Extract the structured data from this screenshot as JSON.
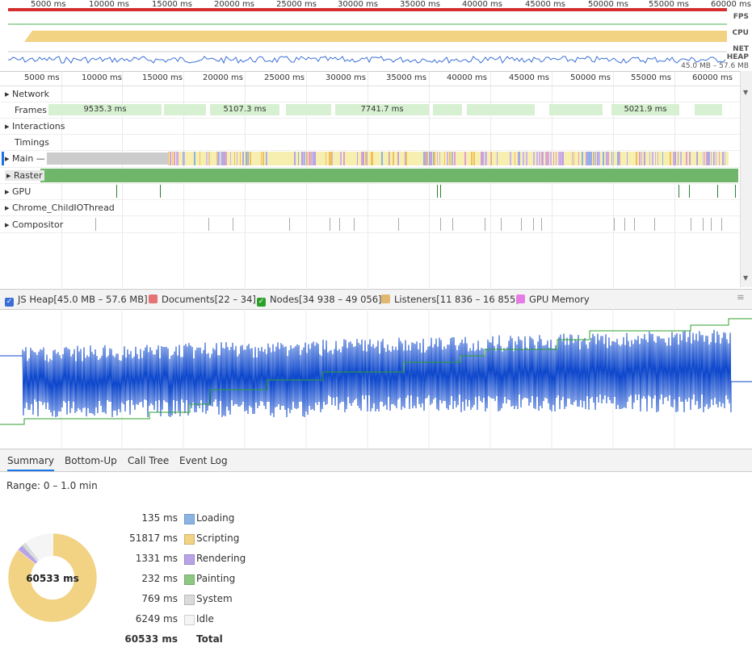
{
  "overview": {
    "ticks": [
      "5000 ms",
      "10000 ms",
      "15000 ms",
      "20000 ms",
      "25000 ms",
      "30000 ms",
      "35000 ms",
      "40000 ms",
      "45000 ms",
      "50000 ms",
      "55000 ms",
      "60000 ms"
    ],
    "lanes": {
      "fps": "FPS",
      "cpu": "CPU",
      "net": "NET",
      "heap": "HEAP"
    },
    "heap_range": "45.0 MB – 57.6 MB"
  },
  "ruler": {
    "ticks": [
      "5000 ms",
      "10000 ms",
      "15000 ms",
      "20000 ms",
      "25000 ms",
      "30000 ms",
      "35000 ms",
      "40000 ms",
      "45000 ms",
      "50000 ms",
      "55000 ms",
      "60000 ms"
    ]
  },
  "tracks": {
    "network": "Network",
    "frames": "Frames",
    "interactions": "Interactions",
    "timings": "Timings",
    "main": "Main —",
    "raster": "Raster",
    "gpu": "GPU",
    "child_io": "Chrome_ChildIOThread",
    "compositor": "Compositor",
    "frame_blocks": [
      "9535.3 ms",
      "5107.3 ms",
      "7741.7 ms",
      "5021.9 ms"
    ]
  },
  "counters": {
    "js_heap": "JS Heap[45.0 MB – 57.6 MB]",
    "documents": "Documents[22 – 34]",
    "nodes": "Nodes[34 938 – 49 056]",
    "listeners": "Listeners[11 836 – 16 855]",
    "gpu_memory": "GPU Memory"
  },
  "tabs": [
    "Summary",
    "Bottom-Up",
    "Call Tree",
    "Event Log"
  ],
  "active_tab": "Summary",
  "range": "Range: 0 – 1.0 min",
  "summary": {
    "total_center": "60533 ms",
    "rows": [
      {
        "value": "135 ms",
        "label": "Loading",
        "color": "#8ab4e4"
      },
      {
        "value": "51817 ms",
        "label": "Scripting",
        "color": "#f2d283"
      },
      {
        "value": "1331 ms",
        "label": "Rendering",
        "color": "#b8a3e8"
      },
      {
        "value": "232 ms",
        "label": "Painting",
        "color": "#8dc883"
      },
      {
        "value": "769 ms",
        "label": "System",
        "color": "#dadada"
      },
      {
        "value": "6249 ms",
        "label": "Idle",
        "color": "#f5f5f5"
      }
    ],
    "total_value": "60533 ms",
    "total_label": "Total"
  },
  "colors": {
    "js_heap": "#0d47cc",
    "nodes": "#2ca02c",
    "documents": "#e57373",
    "listeners": "#e0b870",
    "gpu": "#e57ce5",
    "scripting": "#f2d283",
    "raster": "#6fb56a"
  }
}
